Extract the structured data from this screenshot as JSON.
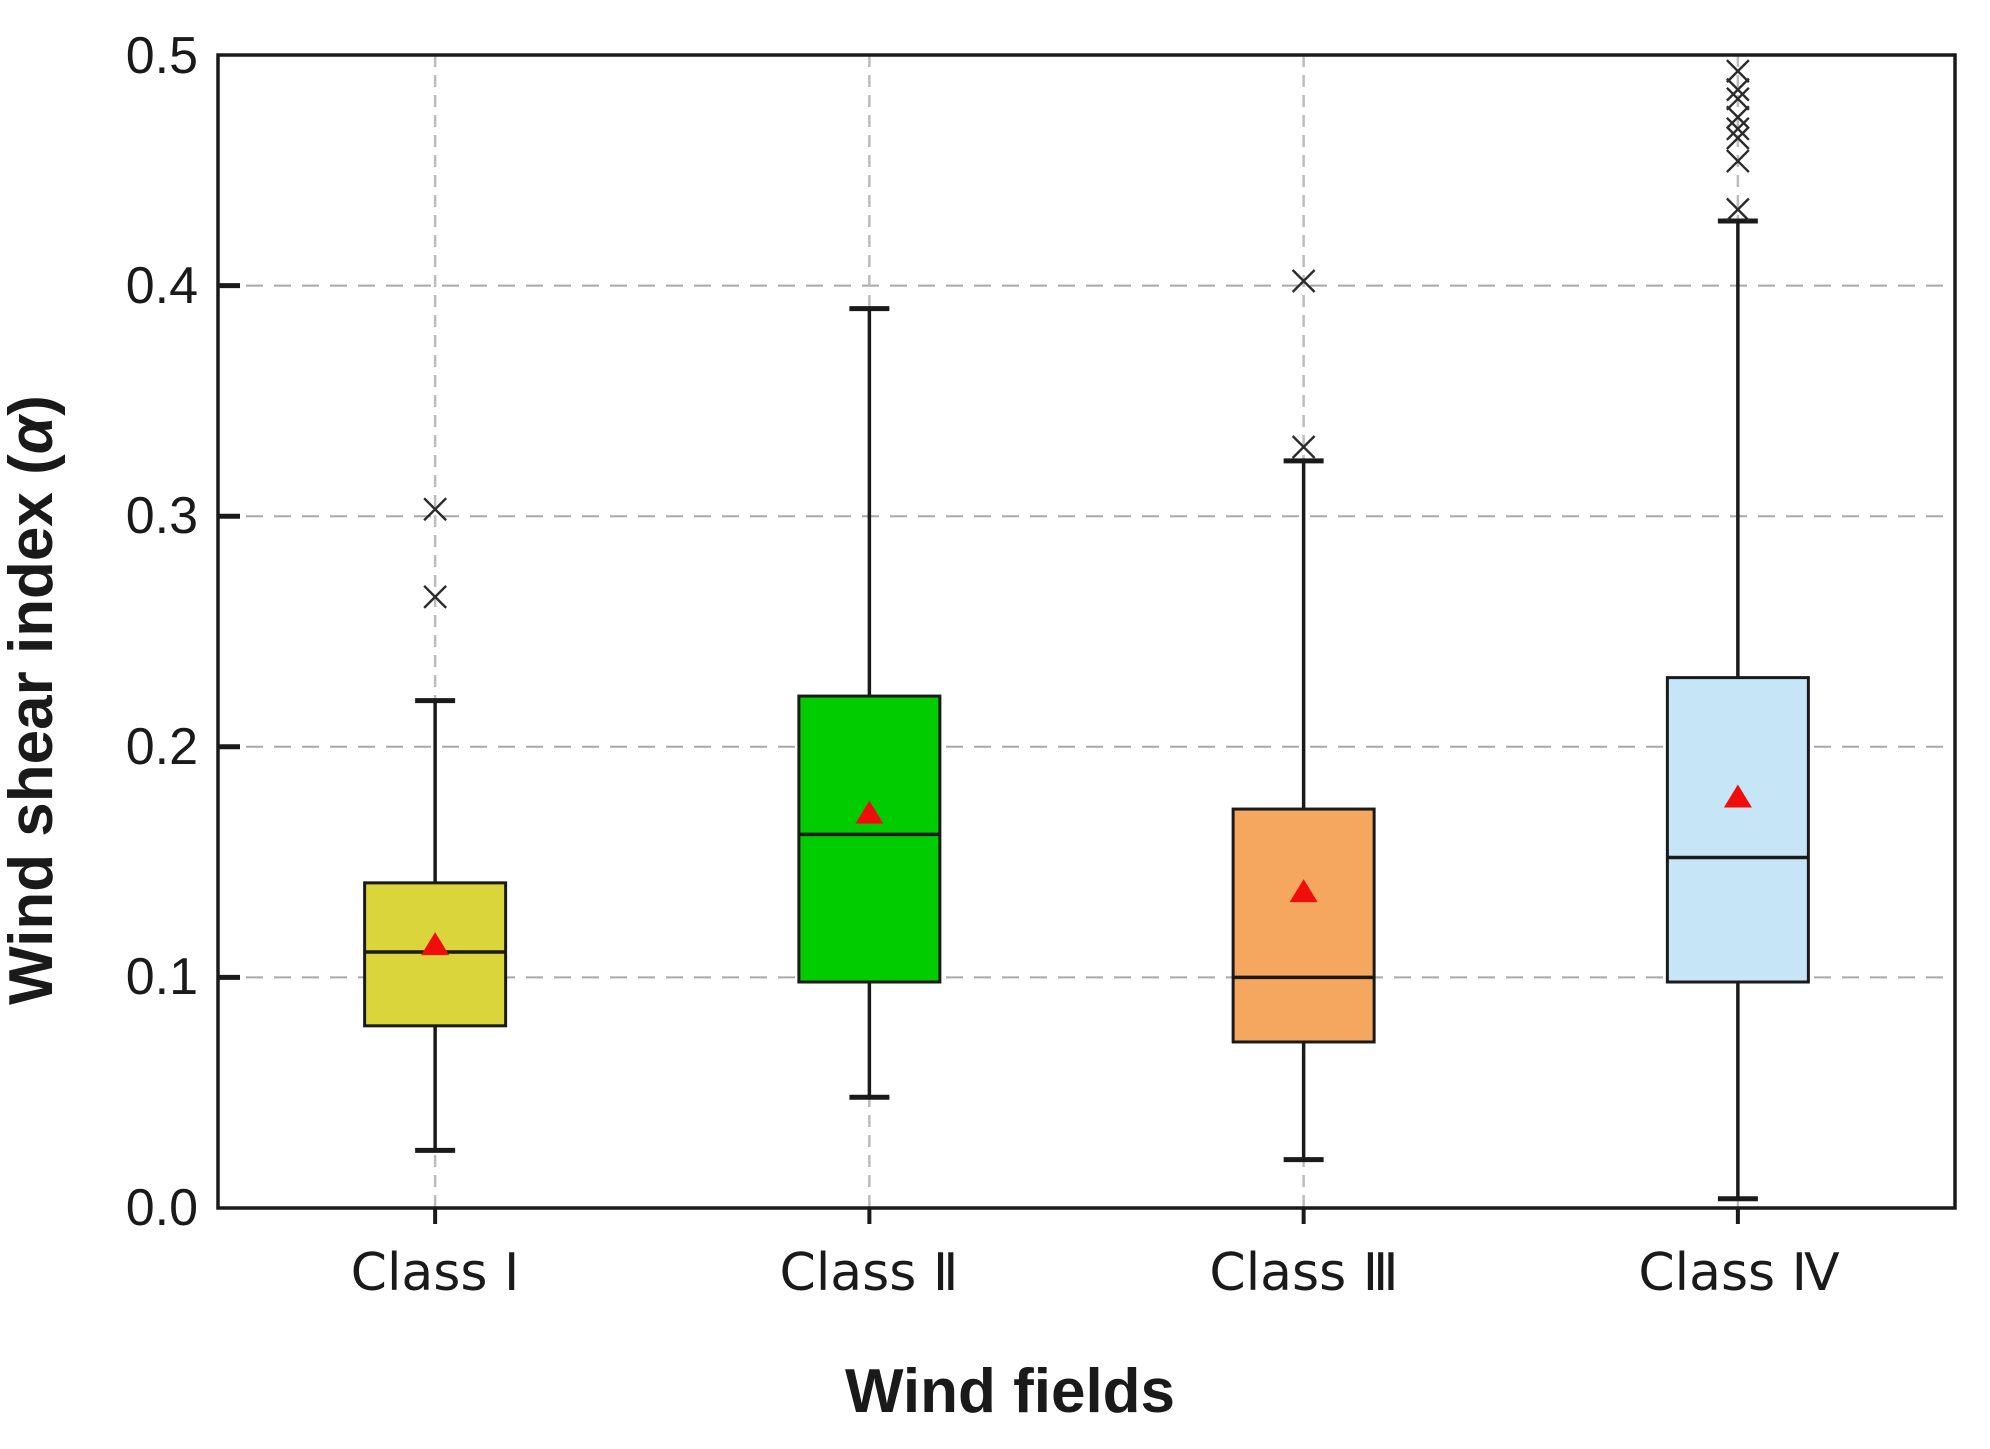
{
  "figure": {
    "background": "#ffffff",
    "frame_color": "#1a1a1a",
    "grid_h_color": "#a8a8a8",
    "grid_v_color": "#bcbcbc"
  },
  "chart_data": {
    "type": "boxplot",
    "title": "",
    "xlabel": "Wind fields",
    "ylabel": "Wind shear index (α)",
    "ylabel_parts": {
      "prefix": "Wind shear index (",
      "alpha": "α",
      "suffix": ")"
    },
    "ylim": [
      0.0,
      0.5
    ],
    "ytick_interval": 0.1,
    "ytick_values": [
      0.0,
      0.1,
      0.2,
      0.3,
      0.4,
      0.5
    ],
    "ytick_labels": [
      "0.0",
      "0.1",
      "0.2",
      "0.3",
      "0.4",
      "0.5"
    ],
    "grid": "dashed horizontal gridlines at 0.1-0.4 and dashed vertical guide at each category center",
    "legend": "none",
    "categories": [
      "Class Ⅰ",
      "Class Ⅱ",
      "Class Ⅲ",
      "Class Ⅳ"
    ],
    "series": [
      {
        "name": "Class Ⅰ",
        "color": "#d9d53a",
        "whisker_low": 0.025,
        "q1": 0.079,
        "median": 0.111,
        "mean": 0.114,
        "q3": 0.141,
        "whisker_high": 0.22,
        "outliers": [
          0.265,
          0.303
        ]
      },
      {
        "name": "Class Ⅱ",
        "color": "#00cc00",
        "whisker_low": 0.048,
        "q1": 0.098,
        "median": 0.162,
        "mean": 0.171,
        "q3": 0.222,
        "whisker_high": 0.39,
        "outliers": []
      },
      {
        "name": "Class Ⅲ",
        "color": "#f5a75f",
        "whisker_low": 0.021,
        "q1": 0.072,
        "median": 0.1,
        "mean": 0.137,
        "q3": 0.173,
        "whisker_high": 0.324,
        "outliers": [
          0.33,
          0.402
        ]
      },
      {
        "name": "Class Ⅳ",
        "color": "#c6e6f8",
        "whisker_low": 0.004,
        "q1": 0.098,
        "median": 0.152,
        "mean": 0.178,
        "q3": 0.23,
        "whisker_high": 0.428,
        "outliers": [
          0.433,
          0.454,
          0.464,
          0.468,
          0.473,
          0.481,
          0.485,
          0.493
        ]
      }
    ],
    "mean_marker": {
      "shape": "triangle-up",
      "color": "#f20d0d",
      "name": "mean-triangle-icon"
    },
    "outlier_marker": {
      "shape": "x",
      "color": "#2b2b2b",
      "name": "outlier-x-icon"
    }
  }
}
